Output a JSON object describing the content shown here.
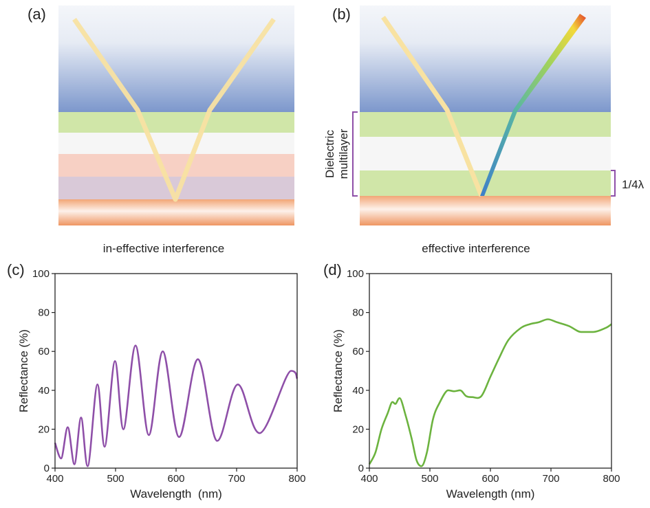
{
  "panels": [
    {
      "label": "(a)",
      "caption": "in-effective interference"
    },
    {
      "label": "(b)",
      "caption": "effective interference",
      "bracket_label": [
        "Dielectric",
        "multilayer"
      ],
      "quarter_label": "1/4λ"
    }
  ],
  "chart_data": [
    {
      "type": "line",
      "panel_label": "(c)",
      "xlabel": "Wavelength  (nm)",
      "ylabel": "Reflectance (%)",
      "xlim": [
        400,
        800
      ],
      "ylim": [
        0,
        100
      ],
      "xticks": [
        400,
        500,
        600,
        700,
        800
      ],
      "yticks": [
        0,
        20,
        40,
        60,
        80,
        100
      ],
      "x": [
        400,
        410,
        421,
        432,
        443,
        454,
        470,
        482,
        499,
        513,
        533,
        555,
        578,
        605,
        636,
        668,
        702,
        738,
        790,
        800
      ],
      "series": [
        {
          "color": "#8e4fa8",
          "values": [
            13,
            5,
            21,
            2,
            26,
            1,
            43,
            11,
            55,
            20,
            63,
            17,
            60,
            16,
            56,
            14,
            43,
            18,
            50,
            46
          ]
        }
      ]
    },
    {
      "type": "line",
      "panel_label": "(d)",
      "xlabel": "Wavelength (nm)",
      "ylabel": "Reflectance (%)",
      "xlim": [
        400,
        800
      ],
      "ylim": [
        0,
        100
      ],
      "xticks": [
        400,
        500,
        600,
        700,
        800
      ],
      "yticks": [
        0,
        20,
        40,
        60,
        80,
        100
      ],
      "x": [
        400,
        410,
        420,
        430,
        438,
        443,
        450,
        460,
        470,
        478,
        486,
        495,
        505,
        515,
        530,
        540,
        550,
        560,
        570,
        585,
        600,
        615,
        630,
        650,
        665,
        680,
        695,
        710,
        730,
        750,
        770,
        790,
        800
      ],
      "series": [
        {
          "color": "#6cb33f",
          "values": [
            2,
            8,
            20,
            28,
            34,
            33,
            36,
            27,
            15,
            4,
            1,
            8,
            25,
            33,
            40,
            39.5,
            40,
            37,
            36.5,
            37,
            47,
            57,
            66,
            72,
            74,
            75,
            76.5,
            75,
            73,
            70,
            70,
            72,
            74
          ]
        }
      ]
    }
  ]
}
